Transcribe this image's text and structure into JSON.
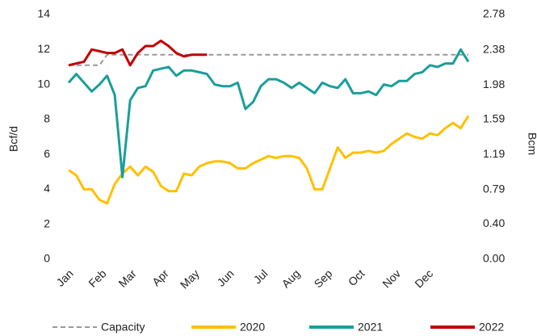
{
  "chart_data": {
    "type": "line",
    "ylabel": "Bcf/d",
    "y2label": "Bcm",
    "x": [
      0,
      1,
      2,
      3,
      4,
      5,
      6,
      7,
      8,
      9,
      10,
      11,
      12,
      13,
      14,
      15,
      16,
      17,
      18,
      19,
      20,
      21,
      22,
      23,
      24,
      25,
      26,
      27,
      28,
      29,
      30,
      31,
      32,
      33,
      34,
      35,
      36,
      37,
      38,
      39,
      40,
      41,
      42,
      43,
      44,
      45,
      46,
      47,
      48,
      49,
      50,
      51,
      52
    ],
    "xlim": [
      0,
      52
    ],
    "xticks": [
      {
        "value": 0,
        "label": "Jan"
      },
      {
        "value": 4.3,
        "label": "Feb"
      },
      {
        "value": 8.2,
        "label": "Mar"
      },
      {
        "value": 12.4,
        "label": "Apr"
      },
      {
        "value": 16.4,
        "label": "May"
      },
      {
        "value": 20.9,
        "label": "Jun"
      },
      {
        "value": 25.3,
        "label": "Jul"
      },
      {
        "value": 29.5,
        "label": "Aug"
      },
      {
        "value": 33.7,
        "label": "Sep"
      },
      {
        "value": 37.9,
        "label": "Oct"
      },
      {
        "value": 42.6,
        "label": "Nov"
      },
      {
        "value": 46.8,
        "label": "Dec"
      }
    ],
    "ylim": [
      0,
      14
    ],
    "yticks": [
      0,
      2,
      4,
      6,
      8,
      10,
      12,
      14
    ],
    "y2lim": [
      0,
      2.78
    ],
    "y2ticks": [
      {
        "value": 0,
        "label": "0.00"
      },
      {
        "value": 0.4,
        "label": "0.40"
      },
      0.79,
      1.19,
      1.59,
      1.98,
      2.38,
      2.78
    ],
    "grid": false,
    "legend": "bottom",
    "series": [
      {
        "name": "Capacity",
        "color": "#999999",
        "dashed": true,
        "values": [
          11.1,
          11.1,
          11.1,
          11.1,
          11.1,
          11.7,
          11.7,
          11.7,
          11.7,
          11.7,
          11.7,
          11.7,
          11.7,
          11.7,
          11.7,
          11.7,
          11.7,
          11.7,
          11.7,
          11.7,
          11.7,
          11.7,
          11.7,
          11.7,
          11.7,
          11.7,
          11.7,
          11.7,
          11.7,
          11.7,
          11.7,
          11.7,
          11.7,
          11.7,
          11.7,
          11.7,
          11.7,
          11.7,
          11.7,
          11.7,
          11.7,
          11.7,
          11.7,
          11.7,
          11.7,
          11.7,
          11.7,
          11.7,
          11.7,
          11.7,
          11.7,
          11.7,
          11.7
        ]
      },
      {
        "name": "2020",
        "color": "#ffc000",
        "dashed": false,
        "values": [
          5.1,
          4.8,
          4.0,
          4.0,
          3.4,
          3.2,
          4.3,
          4.9,
          5.3,
          4.8,
          5.3,
          5.0,
          4.2,
          3.9,
          3.9,
          4.9,
          4.8,
          5.3,
          5.5,
          5.6,
          5.6,
          5.5,
          5.2,
          5.2,
          5.5,
          5.7,
          5.9,
          5.8,
          5.9,
          5.9,
          5.8,
          5.2,
          4.0,
          4.0,
          5.2,
          6.4,
          5.8,
          6.1,
          6.1,
          6.2,
          6.1,
          6.2,
          6.6,
          6.9,
          7.2,
          7.0,
          6.9,
          7.2,
          7.1,
          7.5,
          7.8,
          7.5,
          8.2
        ]
      },
      {
        "name": "2021",
        "color": "#1a9e9b",
        "dashed": false,
        "values": [
          10.1,
          10.6,
          10.1,
          9.6,
          10.0,
          10.5,
          9.4,
          4.7,
          9.1,
          9.8,
          9.9,
          10.8,
          10.9,
          11.0,
          10.5,
          10.8,
          10.8,
          10.7,
          10.6,
          10.0,
          9.9,
          9.9,
          10.1,
          8.6,
          9.0,
          9.9,
          10.3,
          10.3,
          10.1,
          9.8,
          10.1,
          9.8,
          9.5,
          10.1,
          9.9,
          9.8,
          10.3,
          9.5,
          9.5,
          9.6,
          9.4,
          10.0,
          9.9,
          10.2,
          10.2,
          10.6,
          10.7,
          11.1,
          11.0,
          11.2,
          11.2,
          12.0,
          11.3
        ]
      },
      {
        "name": "2022",
        "color": "#c00000",
        "dashed": false,
        "values": [
          11.1,
          11.2,
          11.3,
          12.0,
          11.9,
          11.8,
          11.8,
          12.0,
          11.1,
          11.8,
          12.2,
          12.2,
          12.5,
          12.2,
          11.8,
          11.6,
          11.7,
          11.7,
          11.7,
          null,
          null,
          null,
          null,
          null,
          null,
          null,
          null,
          null,
          null,
          null,
          null,
          null,
          null,
          null,
          null,
          null,
          null,
          null,
          null,
          null,
          null,
          null,
          null,
          null,
          null,
          null,
          null,
          null,
          null,
          null,
          null,
          null,
          null
        ]
      }
    ]
  }
}
